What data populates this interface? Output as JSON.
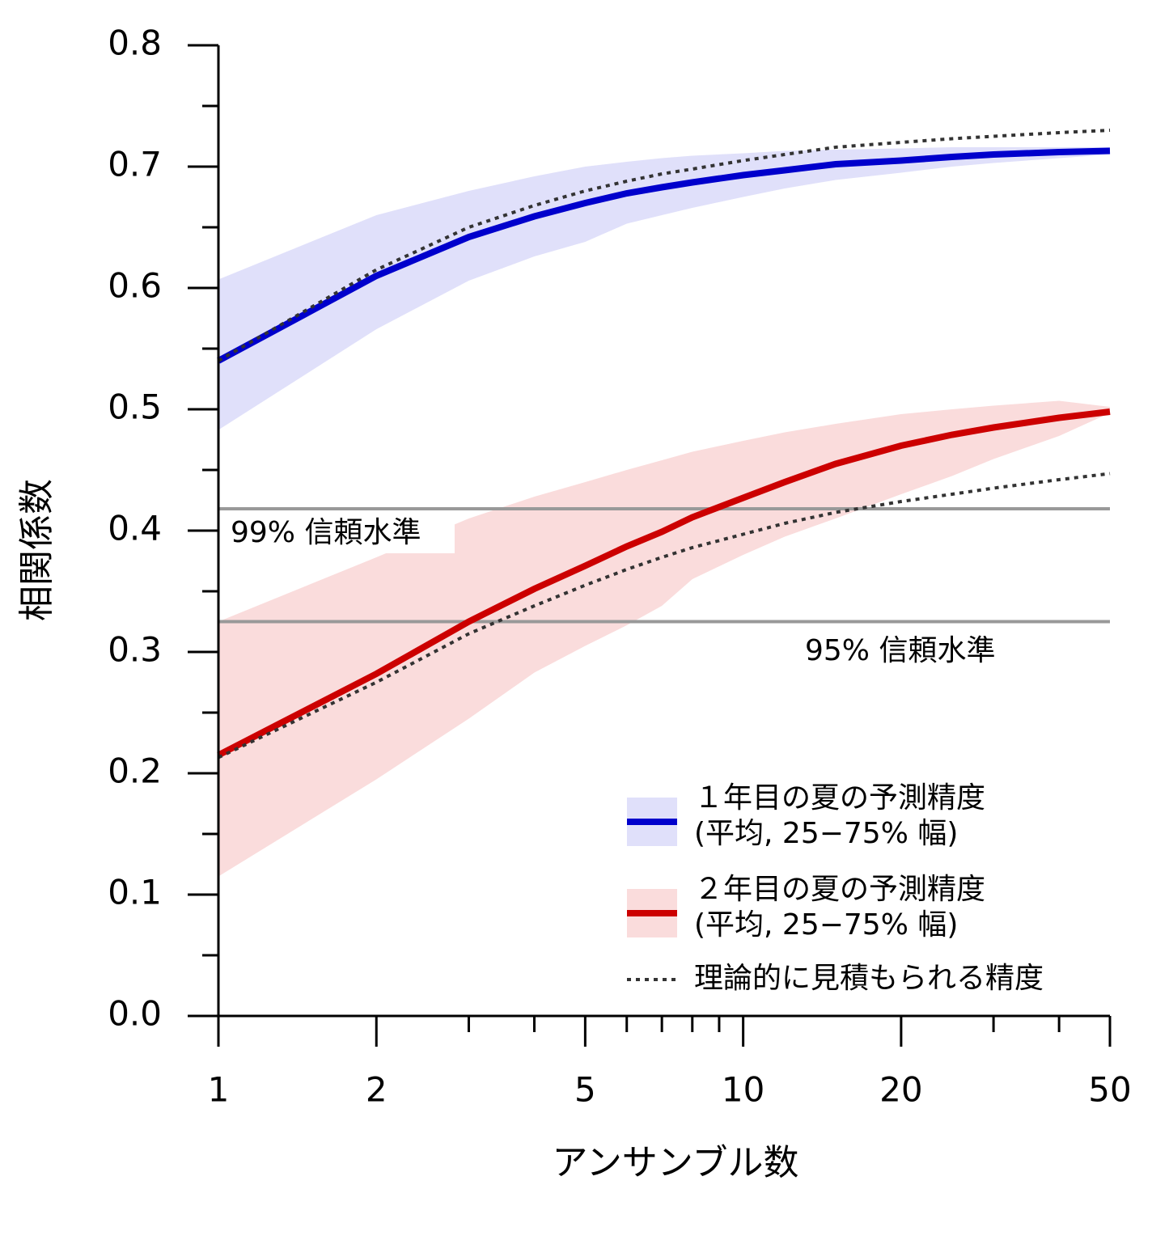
{
  "chart_data": {
    "type": "line",
    "x_label": "アンサンブル数",
    "y_label": "相関係数",
    "xscale": "log",
    "xlim": [
      1,
      50
    ],
    "xticks": [
      1,
      2,
      5,
      10,
      20,
      50
    ],
    "xminor_ticks": [
      3,
      4,
      6,
      7,
      8,
      9,
      30,
      40
    ],
    "ylim": [
      0,
      0.8
    ],
    "yticks": [
      {
        "value": 0,
        "label": "0.0"
      },
      0.1,
      0.2,
      0.3,
      0.4,
      0.5,
      0.6,
      0.7,
      0.8
    ],
    "yminor_ticks": [
      0.05,
      0.15,
      0.25,
      0.35,
      0.45,
      0.55,
      0.65,
      0.75
    ],
    "x": [
      1,
      2,
      3,
      4,
      5,
      6,
      7,
      8,
      10,
      12,
      15,
      20,
      25,
      30,
      40,
      50
    ],
    "series": [
      {
        "name": "１年目の夏の予測精度",
        "band_name": "(平均, 25−75% 幅)",
        "color": "#0000cc",
        "band_color": "#e0e0fa",
        "values": [
          0.54,
          0.61,
          0.642,
          0.659,
          0.67,
          0.678,
          0.683,
          0.687,
          0.693,
          0.697,
          0.702,
          0.705,
          0.708,
          0.71,
          0.712,
          0.713
        ],
        "upper": [
          0.607,
          0.66,
          0.68,
          0.692,
          0.7,
          0.704,
          0.707,
          0.709,
          0.711,
          0.713,
          0.714,
          0.715,
          0.716,
          0.716,
          0.716,
          0.716
        ],
        "lower": [
          0.483,
          0.566,
          0.606,
          0.626,
          0.638,
          0.653,
          0.66,
          0.666,
          0.675,
          0.682,
          0.689,
          0.695,
          0.7,
          0.703,
          0.707,
          0.71
        ],
        "theory": [
          0.54,
          0.615,
          0.65,
          0.668,
          0.68,
          0.688,
          0.694,
          0.698,
          0.705,
          0.71,
          0.716,
          0.72,
          0.723,
          0.725,
          0.728,
          0.73
        ]
      },
      {
        "name": "２年目の夏の予測精度",
        "band_name": "(平均, 25−75% 幅)",
        "color": "#cc0000",
        "band_color": "#fadcdc",
        "values": [
          0.215,
          0.282,
          0.325,
          0.352,
          0.371,
          0.387,
          0.399,
          0.411,
          0.427,
          0.44,
          0.455,
          0.47,
          0.479,
          0.485,
          0.493,
          0.498
        ],
        "upper": [
          0.325,
          0.378,
          0.41,
          0.428,
          0.44,
          0.45,
          0.458,
          0.465,
          0.474,
          0.481,
          0.488,
          0.496,
          0.5,
          0.503,
          0.507,
          0.502
        ],
        "lower": [
          0.115,
          0.195,
          0.245,
          0.283,
          0.305,
          0.322,
          0.338,
          0.36,
          0.38,
          0.395,
          0.41,
          0.43,
          0.445,
          0.459,
          0.478,
          0.497
        ],
        "theory": [
          0.213,
          0.275,
          0.315,
          0.338,
          0.355,
          0.368,
          0.378,
          0.386,
          0.397,
          0.406,
          0.415,
          0.424,
          0.43,
          0.435,
          0.442,
          0.447
        ]
      }
    ],
    "theory_name": "理論的に見積もられる精度",
    "theory_color": "#333333",
    "reference_lines": [
      {
        "y": 0.418,
        "text": "99% 信頼水準"
      },
      {
        "y": 0.325,
        "text": "95% 信頼水準"
      }
    ],
    "reference_color": "#999999"
  }
}
